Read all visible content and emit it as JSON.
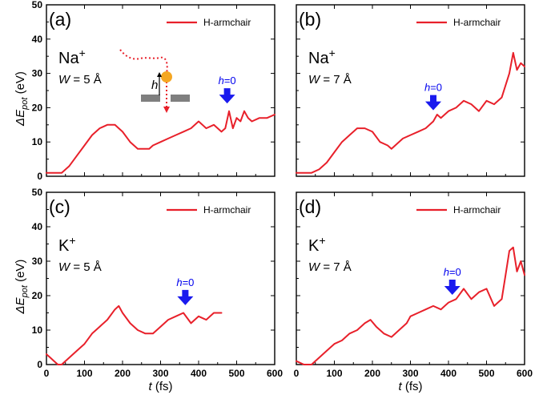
{
  "colors": {
    "series": "#e8202a",
    "arrow": "#1a1aee",
    "axis": "#000000",
    "inset_bar": "#7f7f7f",
    "inset_ion": "#f5a623"
  },
  "axes": {
    "ylabel_main": "ΔE",
    "ylabel_sub": "pot",
    "ylabel_unit": " (eV)",
    "xlabel_var": "t",
    "xlabel_unit": " (fs)",
    "xticks": [
      "0",
      "100",
      "200",
      "300",
      "400",
      "500",
      "600"
    ],
    "yticks": [
      "0",
      "10",
      "20",
      "30",
      "40",
      "50"
    ]
  },
  "inset": {
    "h_label": "h"
  },
  "chart_data": [
    {
      "type": "line",
      "panel": "(a)",
      "ion": "Na",
      "ion_charge": "+",
      "width_label": "W",
      "width_value": " = 5 Å",
      "legend": "H-armchair",
      "annotation": "h=0",
      "annotation_x": 475,
      "annotation_y": 21,
      "xlim": [
        0,
        600
      ],
      "ylim": [
        0,
        50
      ],
      "series": [
        {
          "name": "H-armchair",
          "x": [
            0,
            20,
            40,
            60,
            80,
            100,
            120,
            140,
            160,
            180,
            190,
            200,
            220,
            240,
            260,
            270,
            280,
            300,
            320,
            340,
            360,
            380,
            400,
            420,
            440,
            460,
            470,
            480,
            490,
            500,
            510,
            520,
            530,
            540,
            560,
            580,
            600
          ],
          "y": [
            1,
            1,
            1,
            3,
            6,
            9,
            12,
            14,
            15,
            15,
            14,
            13,
            10,
            8,
            8,
            8,
            9,
            10,
            11,
            12,
            13,
            14,
            16,
            14,
            15,
            13,
            14,
            19,
            14,
            17,
            16,
            19,
            17,
            16,
            17,
            17,
            18
          ]
        }
      ]
    },
    {
      "type": "line",
      "panel": "(b)",
      "ion": "Na",
      "ion_charge": "+",
      "width_label": "W",
      "width_value": " = 7 Å",
      "legend": "H-armchair",
      "annotation": "h=0",
      "annotation_x": 360,
      "annotation_y": 19,
      "xlim": [
        0,
        600
      ],
      "ylim": [
        0,
        50
      ],
      "series": [
        {
          "name": "H-armchair",
          "x": [
            0,
            20,
            40,
            60,
            80,
            100,
            120,
            140,
            160,
            180,
            200,
            220,
            240,
            250,
            260,
            280,
            300,
            320,
            340,
            360,
            370,
            380,
            400,
            420,
            440,
            460,
            480,
            500,
            520,
            540,
            560,
            570,
            580,
            590,
            600
          ],
          "y": [
            1,
            1,
            1,
            2,
            4,
            7,
            10,
            12,
            14,
            14,
            13,
            10,
            9,
            8,
            9,
            11,
            12,
            13,
            14,
            16,
            18,
            17,
            19,
            20,
            22,
            21,
            19,
            22,
            21,
            23,
            30,
            36,
            31,
            33,
            32
          ]
        }
      ]
    },
    {
      "type": "line",
      "panel": "(c)",
      "ion": "K",
      "ion_charge": "+",
      "width_label": "W",
      "width_value": " = 5 Å",
      "legend": "H-armchair",
      "annotation": "h=0",
      "annotation_x": 365,
      "annotation_y": 17,
      "xlim": [
        0,
        600
      ],
      "ylim": [
        0,
        50
      ],
      "series": [
        {
          "name": "H-armchair",
          "x": [
            0,
            10,
            20,
            30,
            40,
            60,
            80,
            100,
            120,
            140,
            160,
            180,
            190,
            200,
            220,
            240,
            260,
            280,
            300,
            320,
            340,
            360,
            380,
            400,
            420,
            440,
            460
          ],
          "y": [
            3,
            2,
            1,
            0,
            0,
            2,
            4,
            6,
            9,
            11,
            13,
            16,
            17,
            15,
            12,
            10,
            9,
            9,
            11,
            13,
            14,
            15,
            12,
            14,
            13,
            15,
            15
          ]
        }
      ]
    },
    {
      "type": "line",
      "panel": "(d)",
      "ion": "K",
      "ion_charge": "+",
      "width_label": "W",
      "width_value": " = 7 Å",
      "legend": "H-armchair",
      "annotation": "h=0",
      "annotation_x": 410,
      "annotation_y": 20,
      "xlim": [
        0,
        600
      ],
      "ylim": [
        0,
        50
      ],
      "series": [
        {
          "name": "H-armchair",
          "x": [
            0,
            20,
            40,
            60,
            80,
            100,
            120,
            140,
            160,
            180,
            195,
            210,
            230,
            250,
            270,
            290,
            300,
            320,
            340,
            360,
            380,
            400,
            420,
            440,
            460,
            480,
            500,
            520,
            540,
            550,
            560,
            570,
            580,
            590,
            600
          ],
          "y": [
            1,
            0,
            0,
            2,
            4,
            6,
            7,
            9,
            10,
            12,
            13,
            11,
            9,
            8,
            10,
            12,
            14,
            15,
            16,
            17,
            16,
            18,
            19,
            22,
            19,
            21,
            22,
            17,
            19,
            26,
            33,
            34,
            27,
            30,
            26
          ]
        }
      ]
    }
  ]
}
